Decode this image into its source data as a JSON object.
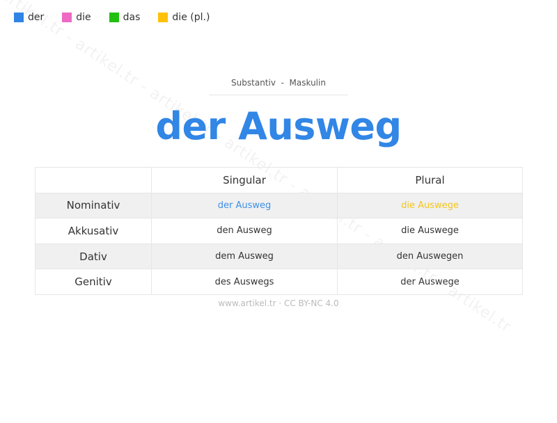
{
  "watermark": "artikel.tr - artikel.tr - artikel.tr - artikel.tr - artikel.tr - artikel.tr - artikel.tr",
  "legend": [
    {
      "label": "der",
      "color": "#2f84e4"
    },
    {
      "label": "die",
      "color": "#ee6ac4"
    },
    {
      "label": "das",
      "color": "#22c00e"
    },
    {
      "label": "die (pl.)",
      "color": "#ffc107"
    }
  ],
  "subtitle": "Substantiv  -  Maskulin",
  "title": "der Ausweg",
  "title_color": "#3186e6",
  "table": {
    "headers": [
      "",
      "Singular",
      "Plural"
    ],
    "rows": [
      {
        "case": "Nominativ",
        "singular": "der Ausweg",
        "plural": "die Auswege"
      },
      {
        "case": "Akkusativ",
        "singular": "den Ausweg",
        "plural": "die Auswege"
      },
      {
        "case": "Dativ",
        "singular": "dem Ausweg",
        "plural": "den Auswegen"
      },
      {
        "case": "Genitiv",
        "singular": "des Auswegs",
        "plural": "der Auswege"
      }
    ],
    "nominative_singular_color": "#3d8fe8",
    "nominative_plural_color": "#f5c518"
  },
  "footer": "www.artikel.tr · CC BY-NC 4.0"
}
